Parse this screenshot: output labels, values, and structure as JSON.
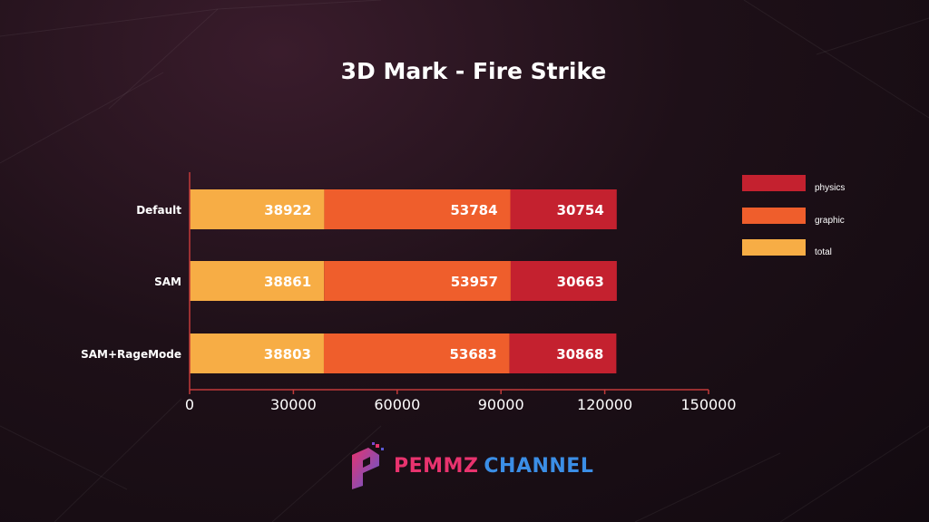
{
  "chart_data": {
    "type": "bar",
    "orientation": "horizontal",
    "stacked": true,
    "title": "3D Mark - Fire Strike",
    "categories": [
      "Default",
      "SAM",
      "SAM+RageMode"
    ],
    "series": [
      {
        "name": "total",
        "color": "#f7ad45",
        "values": [
          38922,
          38861,
          38803
        ]
      },
      {
        "name": "graphic",
        "color": "#ef5e2c",
        "values": [
          53784,
          53957,
          53683
        ]
      },
      {
        "name": "physics",
        "color": "#c4212f",
        "values": [
          30754,
          30663,
          30868
        ]
      }
    ],
    "legend_order": [
      "physics",
      "graphic",
      "total"
    ],
    "legend_position": "right",
    "xlim": [
      0,
      150000
    ],
    "xticks": [
      "0",
      "30000",
      "60000",
      "90000",
      "120000",
      "150000"
    ],
    "grid": false
  },
  "logo": {
    "text_a": "PEMMZ",
    "text_b": "CHANNEL",
    "color_a": "#e8336e",
    "color_b": "#3b8ee6"
  }
}
